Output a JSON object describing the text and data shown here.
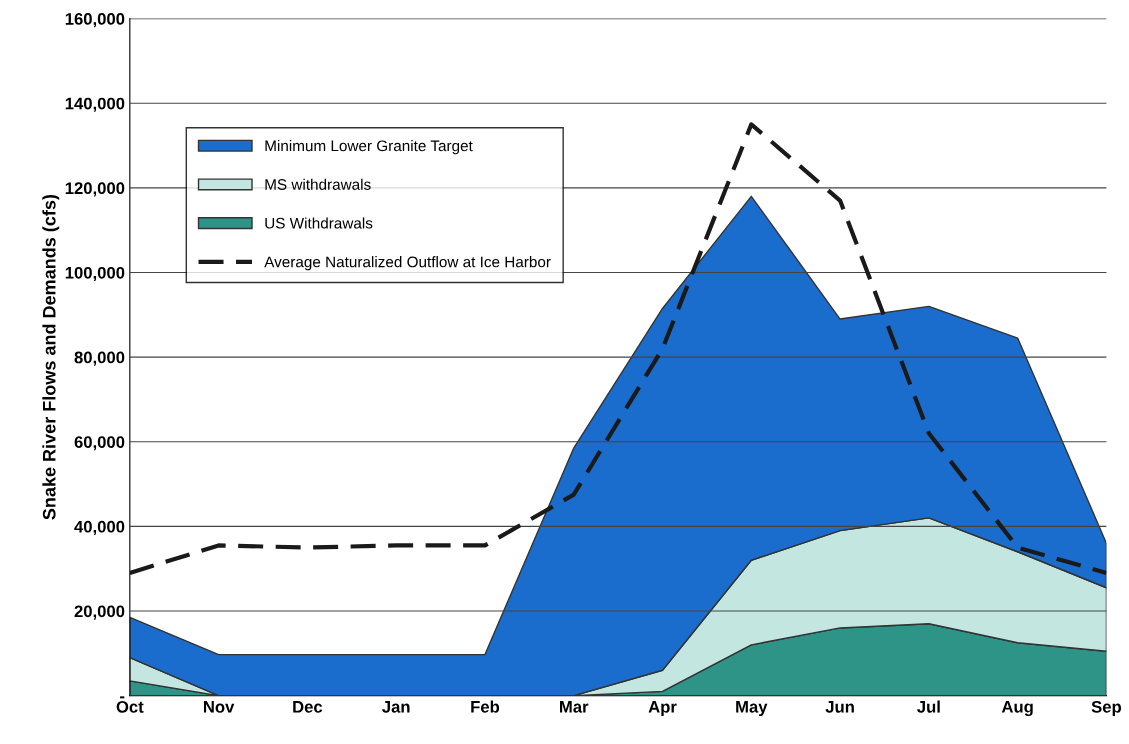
{
  "chart_data": {
    "type": "area",
    "stacked": true,
    "ylabel": "Snake River Flows and Demands (cfs)",
    "categories": [
      "Oct",
      "Nov",
      "Dec",
      "Jan",
      "Feb",
      "Mar",
      "Apr",
      "May",
      "Jun",
      "Jul",
      "Aug",
      "Sep"
    ],
    "series": [
      {
        "name": "US Withdrawals",
        "color": "#2e9488",
        "values": [
          3500,
          0,
          0,
          0,
          0,
          0,
          1000,
          12000,
          16000,
          17000,
          12500,
          10500
        ]
      },
      {
        "name": "MS withdrawals",
        "color": "#c4e6e0",
        "values": [
          5500,
          0,
          0,
          0,
          0,
          0,
          5000,
          20000,
          23000,
          25000,
          21500,
          15000
        ]
      },
      {
        "name": "Minimum Lower Granite Target",
        "color": "#1a6dcc",
        "values": [
          9500,
          9700,
          9700,
          9700,
          9700,
          58500,
          85500,
          86000,
          50000,
          50000,
          50500,
          10500
        ]
      },
      {
        "name": "Average Naturalized Outflow at Ice Harbor",
        "type": "line",
        "color": "#1a1a1a",
        "line_style": "dashed",
        "values": [
          29000,
          35500,
          35000,
          35500,
          35500,
          47500,
          82000,
          135000,
          117000,
          62000,
          35000,
          29000
        ]
      }
    ],
    "ylim": [
      0,
      160000
    ],
    "yticks": [
      {
        "value": 0,
        "label": "-"
      },
      {
        "value": 20000,
        "label": "20,000"
      },
      {
        "value": 40000,
        "label": "40,000"
      },
      {
        "value": 60000,
        "label": "60,000"
      },
      {
        "value": 80000,
        "label": "80,000"
      },
      {
        "value": 100000,
        "label": "100,000"
      },
      {
        "value": 120000,
        "label": "120,000"
      },
      {
        "value": 140000,
        "label": "140,000"
      },
      {
        "value": 160000,
        "label": "160,000"
      }
    ],
    "grid": "y",
    "legend": "top left"
  }
}
